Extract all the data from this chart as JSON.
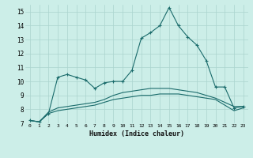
{
  "xlabel": "Humidex (Indice chaleur)",
  "xlim": [
    -0.5,
    23.5
  ],
  "ylim": [
    7,
    15.5
  ],
  "yticks": [
    7,
    8,
    9,
    10,
    11,
    12,
    13,
    14,
    15
  ],
  "xticks": [
    0,
    1,
    2,
    3,
    4,
    5,
    6,
    7,
    8,
    9,
    10,
    11,
    12,
    13,
    14,
    15,
    16,
    17,
    18,
    19,
    20,
    21,
    22,
    23
  ],
  "bg_color": "#cceee8",
  "line_color": "#1a6b6b",
  "grid_color": "#aad4ce",
  "line1_x": [
    0,
    1,
    2,
    3,
    4,
    5,
    6,
    7,
    8,
    9,
    10,
    11,
    12,
    13,
    14,
    15,
    16,
    17,
    18,
    19,
    20,
    21,
    22,
    23
  ],
  "line1_y": [
    7.2,
    7.1,
    7.7,
    10.3,
    10.5,
    10.3,
    10.1,
    9.5,
    9.9,
    10.0,
    10.0,
    10.8,
    13.1,
    13.5,
    14.0,
    15.3,
    14.0,
    13.2,
    12.6,
    11.5,
    9.6,
    9.6,
    8.1,
    8.2
  ],
  "line2_x": [
    0,
    1,
    2,
    3,
    4,
    5,
    6,
    7,
    8,
    9,
    10,
    11,
    12,
    13,
    14,
    15,
    16,
    17,
    18,
    19,
    20,
    21,
    22,
    23
  ],
  "line2_y": [
    7.2,
    7.1,
    7.8,
    8.1,
    8.2,
    8.3,
    8.4,
    8.5,
    8.7,
    9.0,
    9.2,
    9.3,
    9.4,
    9.5,
    9.5,
    9.5,
    9.4,
    9.3,
    9.2,
    9.0,
    8.8,
    8.5,
    8.2,
    8.2
  ],
  "line3_x": [
    0,
    1,
    2,
    3,
    4,
    5,
    6,
    7,
    8,
    9,
    10,
    11,
    12,
    13,
    14,
    15,
    16,
    17,
    18,
    19,
    20,
    21,
    22,
    23
  ],
  "line3_y": [
    7.2,
    7.1,
    7.7,
    7.9,
    8.0,
    8.1,
    8.2,
    8.3,
    8.5,
    8.7,
    8.8,
    8.9,
    9.0,
    9.0,
    9.1,
    9.1,
    9.1,
    9.0,
    8.9,
    8.8,
    8.7,
    8.3,
    7.9,
    8.1
  ],
  "fig_width": 3.2,
  "fig_height": 2.0,
  "dpi": 100
}
